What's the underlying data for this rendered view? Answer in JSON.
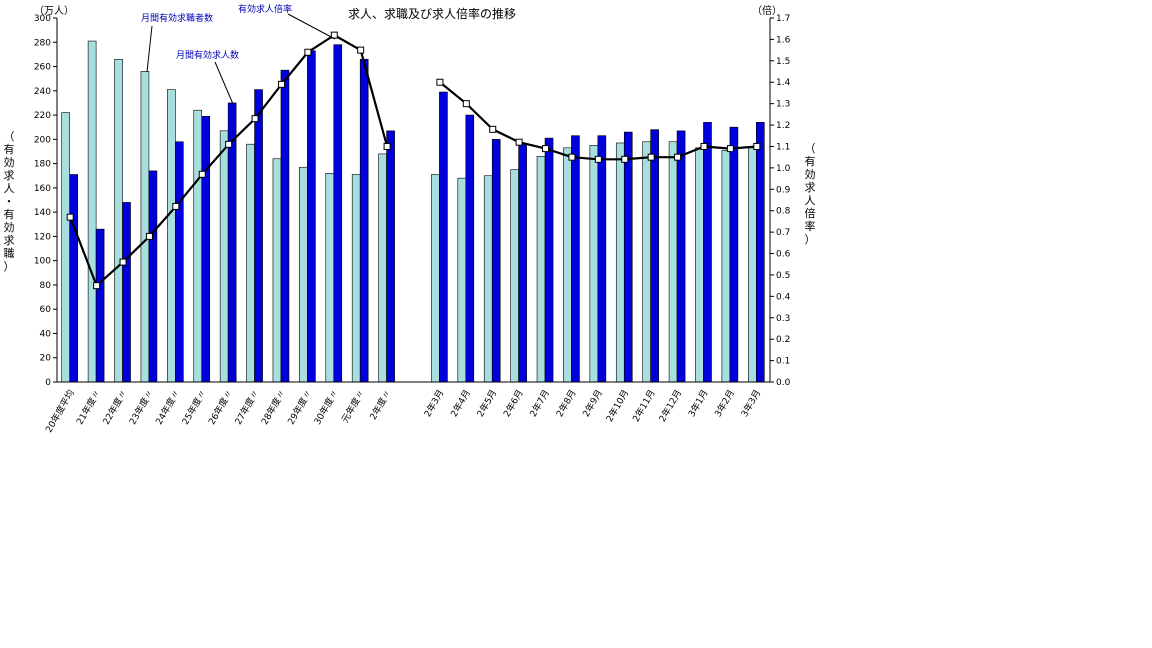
{
  "chart_data": {
    "type": "bar",
    "title": "求人、求職及び求人倍率の推移",
    "left_unit": "（万人）",
    "right_unit": "（倍）",
    "ylabel_left": "（有効求人・有効求職）",
    "ylabel_right": "（有効求人倍率）",
    "ylim_left": [
      0,
      300
    ],
    "ylim_right": [
      0,
      1.7
    ],
    "left_ticks": [
      "0",
      "20",
      "40",
      "60",
      "80",
      "100",
      "120",
      "140",
      "160",
      "180",
      "200",
      "220",
      "240",
      "260",
      "280",
      "300"
    ],
    "right_ticks": [
      "0.0",
      "0.1",
      "0.2",
      "0.3",
      "0.4",
      "0.5",
      "0.6",
      "0.7",
      "0.8",
      "0.9",
      "1.0",
      "1.1",
      "1.2",
      "1.3",
      "1.4",
      "1.5",
      "1.6",
      "1.7"
    ],
    "grid": false,
    "categories": [
      "20年度平均",
      "21年度〃",
      "22年度〃",
      "23年度〃",
      "24年度〃",
      "25年度〃",
      "26年度〃",
      "27年度〃",
      "28年度〃",
      "29年度〃",
      "30年度〃",
      "元年度〃",
      "2年度〃",
      "",
      "2年3月",
      "2年4月",
      "2年5月",
      "2年6月",
      "2年7月",
      "2年8月",
      "2年9月",
      "2年10月",
      "2年11月",
      "2年12月",
      "3年1月",
      "3年2月",
      "3年3月"
    ],
    "series": [
      {
        "name": "月間有効求職者数",
        "axis": "left",
        "kind": "bar",
        "color": "#a8dede",
        "values": [
          222,
          281,
          266,
          256,
          241,
          224,
          207,
          196,
          184,
          177,
          172,
          171,
          188,
          null,
          171,
          168,
          170,
          175,
          186,
          193,
          195,
          197,
          198,
          198,
          193,
          191,
          193
        ]
      },
      {
        "name": "月間有効求人数",
        "axis": "left",
        "kind": "bar",
        "color": "#0000dc",
        "values": [
          171,
          126,
          148,
          174,
          198,
          219,
          230,
          241,
          257,
          273,
          278,
          266,
          207,
          null,
          239,
          220,
          200,
          196,
          201,
          203,
          203,
          206,
          208,
          207,
          214,
          210,
          214
        ]
      },
      {
        "name": "有効求人倍率",
        "axis": "right",
        "kind": "line",
        "color": "#000000",
        "values": [
          0.77,
          0.45,
          0.56,
          0.68,
          0.82,
          0.97,
          1.11,
          1.23,
          1.39,
          1.54,
          1.62,
          1.55,
          1.1,
          null,
          1.4,
          1.3,
          1.18,
          1.12,
          1.09,
          1.05,
          1.04,
          1.04,
          1.05,
          1.05,
          1.1,
          1.09,
          1.1
        ]
      }
    ]
  }
}
